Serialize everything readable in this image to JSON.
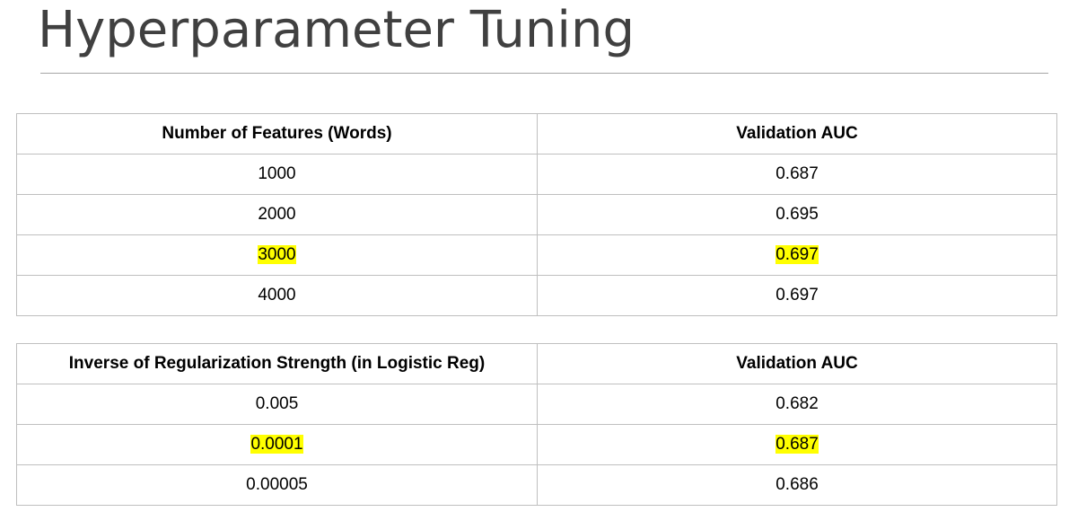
{
  "slide": {
    "title": "Hyperparameter Tuning"
  },
  "colors": {
    "highlight": "#ffff00",
    "title_text": "#404040",
    "table_border": "#bfbfbf"
  },
  "features_table": {
    "headers": [
      "Number of Features (Words)",
      "Validation AUC"
    ],
    "rows": [
      {
        "value": "1000",
        "auc": "0.687",
        "highlighted": false
      },
      {
        "value": "2000",
        "auc": "0.695",
        "highlighted": false
      },
      {
        "value": "3000",
        "auc": "0.697",
        "highlighted": true
      },
      {
        "value": "4000",
        "auc": "0.697",
        "highlighted": false
      }
    ]
  },
  "regularization_table": {
    "headers": [
      "Inverse of Regularization Strength (in Logistic Reg)",
      "Validation AUC"
    ],
    "rows": [
      {
        "value": "0.005",
        "auc": "0.682",
        "highlighted": false
      },
      {
        "value": "0.0001",
        "auc": "0.687",
        "highlighted": true
      },
      {
        "value": "0.00005",
        "auc": "0.686",
        "highlighted": false
      }
    ]
  }
}
